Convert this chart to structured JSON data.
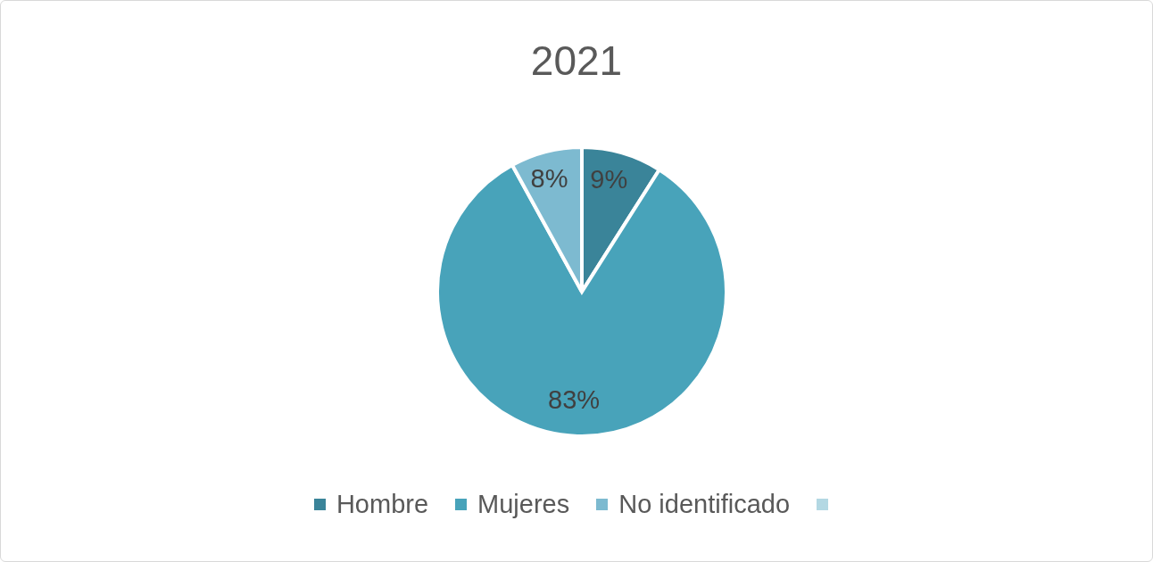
{
  "chart_data": {
    "type": "pie",
    "title": "2021",
    "categories": [
      "Hombre",
      "Mujeres",
      "No identificado",
      null
    ],
    "values": [
      9,
      83,
      8,
      0
    ],
    "value_labels": [
      "9%",
      "83%",
      "8%",
      null
    ],
    "colors": [
      "#3a8499",
      "#48a3ba",
      "#7dbad0",
      "#b3d8e3"
    ],
    "legend": "bottom"
  }
}
